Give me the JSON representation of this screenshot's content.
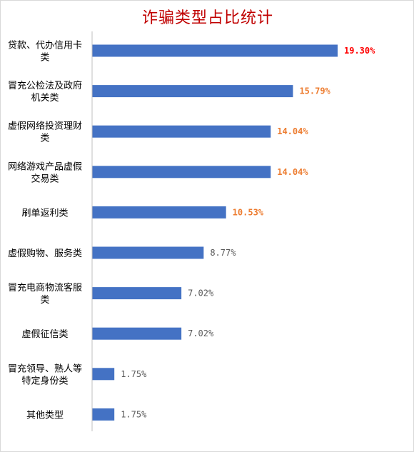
{
  "chart_data": {
    "type": "bar",
    "orientation": "horizontal",
    "title": "诈骗类型占比统计",
    "categories": [
      [
        "贷款、代办信用卡",
        "类"
      ],
      [
        "冒充公检法及政府",
        "机关类"
      ],
      [
        "虚假网络投资理财",
        "类"
      ],
      [
        "网络游戏产品虚假",
        "交易类"
      ],
      [
        "刷单返利类"
      ],
      [
        "虚假购物、服务类"
      ],
      [
        "冒充电商物流客服",
        "类"
      ],
      [
        "虚假征信类"
      ],
      [
        "冒充领导、熟人等",
        "特定身份类"
      ],
      [
        "其他类型"
      ]
    ],
    "values": [
      19.3,
      15.79,
      14.04,
      14.04,
      10.53,
      8.77,
      7.02,
      7.02,
      1.75,
      1.75
    ],
    "labels": [
      "19.30%",
      "15.79%",
      "14.04%",
      "14.04%",
      "10.53%",
      "8.77%",
      "7.02%",
      "7.02%",
      "1.75%",
      "1.75%"
    ],
    "label_colors": [
      "#ff0000",
      "#ed7d31",
      "#ed7d31",
      "#ed7d31",
      "#ed7d31",
      "#595959",
      "#595959",
      "#595959",
      "#595959",
      "#595959"
    ],
    "label_bold": [
      true,
      true,
      true,
      true,
      true,
      false,
      false,
      false,
      false,
      false
    ],
    "bar_color": "#4472c4",
    "xlim": [
      0,
      20
    ],
    "grid": false,
    "legend": "none"
  }
}
